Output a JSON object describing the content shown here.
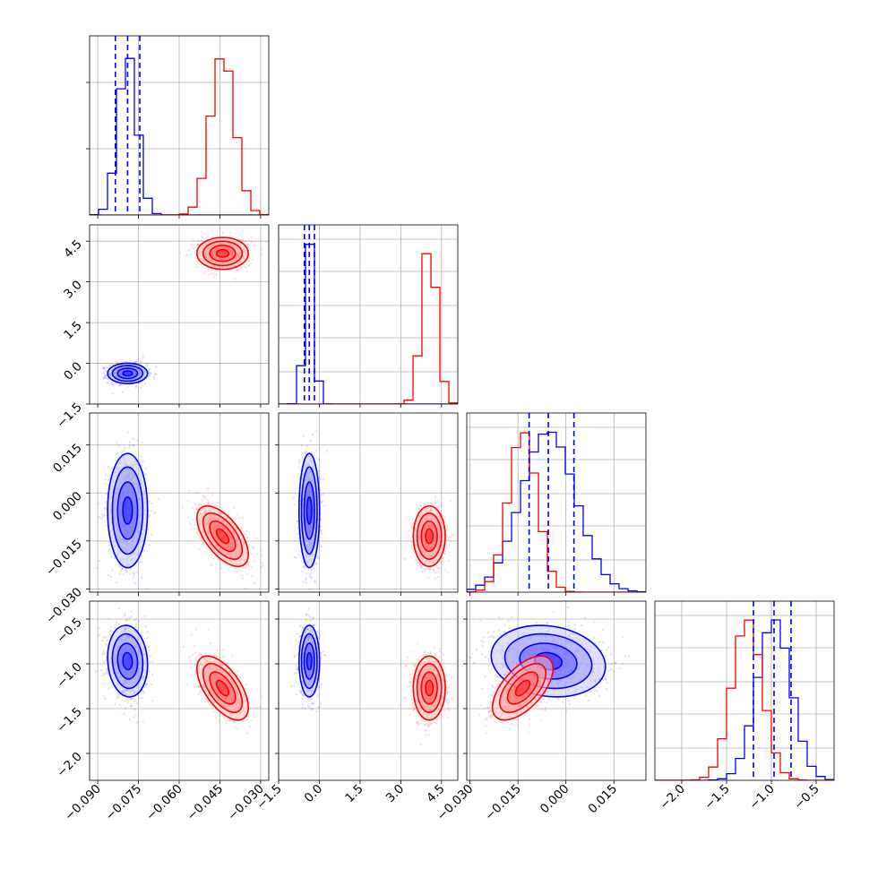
{
  "chart_data": {
    "type": "corner",
    "grid": true,
    "colors": {
      "series_a": "#0000ff",
      "series_b": "#ff0000"
    },
    "series": [
      {
        "color": "#0000ff",
        "params": [
          {
            "mean": -0.079,
            "sd": 0.0035
          },
          {
            "mean": -0.37,
            "sd": 0.18
          },
          {
            "mean": -0.0055,
            "sd": 0.0085
          },
          {
            "mean": -0.97,
            "sd": 0.19
          }
        ],
        "quantiles": [
          [
            -0.0835,
            -0.079,
            -0.0745
          ],
          [
            -0.55,
            -0.37,
            -0.18
          ],
          [
            -0.0115,
            -0.0055,
            0.0025
          ],
          [
            -1.2,
            -0.97,
            -0.78
          ]
        ],
        "correlations": [
          {
            "i": 2,
            "j": 0,
            "rho": 0.0
          },
          {
            "i": 3,
            "j": 0,
            "rho": -0.1
          },
          {
            "i": 3,
            "j": 2,
            "rho": -0.15
          }
        ]
      },
      {
        "color": "#ff0000",
        "params": [
          {
            "mean": -0.044,
            "sd": 0.0045
          },
          {
            "mean": 4.05,
            "sd": 0.28
          },
          {
            "mean": -0.0135,
            "sd": 0.0045
          },
          {
            "mean": -1.27,
            "sd": 0.17
          }
        ],
        "correlations": [
          {
            "i": 2,
            "j": 0,
            "rho": -0.6
          },
          {
            "i": 3,
            "j": 0,
            "rho": -0.6
          },
          {
            "i": 3,
            "j": 2,
            "rho": 0.6
          }
        ]
      }
    ],
    "axes": [
      {
        "range": [
          -0.093,
          -0.027
        ],
        "ticks": [
          "-0.090",
          "-0.075",
          "-0.060",
          "-0.045",
          "-0.030"
        ],
        "tick_values": [
          -0.09,
          -0.075,
          -0.06,
          -0.045,
          -0.03
        ]
      },
      {
        "range": [
          -1.5,
          5.1
        ],
        "ticks": [
          "-1.5",
          "0.0",
          "1.5",
          "3.0",
          "4.5"
        ],
        "tick_values": [
          -1.5,
          0.0,
          1.5,
          3.0,
          4.5
        ]
      },
      {
        "range": [
          -0.031,
          0.025
        ],
        "ticks": [
          "-0.030",
          "-0.015",
          "0.000",
          "0.015"
        ],
        "tick_values": [
          -0.03,
          -0.015,
          0.0,
          0.015
        ]
      },
      {
        "range": [
          -2.3,
          -0.3
        ],
        "ticks": [
          "-2.0",
          "-1.5",
          "-1.0",
          "-0.5"
        ],
        "tick_values": [
          -2.0,
          -1.5,
          -1.0,
          -0.5
        ]
      }
    ],
    "diagonal_ylim": [
      0,
      1.05
    ]
  }
}
